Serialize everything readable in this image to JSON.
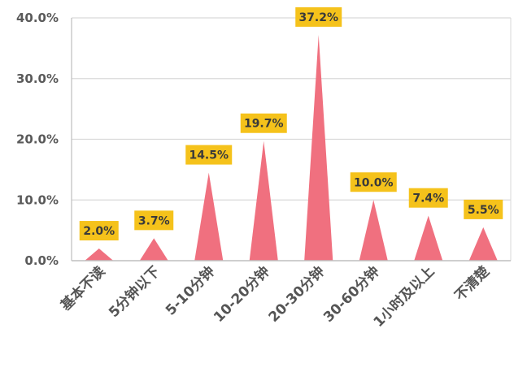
{
  "chart_data": {
    "type": "bar",
    "bar_shape": "triangle",
    "categories": [
      "基本不读",
      "5分钟以下",
      "5-10分钟",
      "10-20分钟",
      "20-30分钟",
      "30-60分钟",
      "1小时及以上",
      "不清楚"
    ],
    "values": [
      2.0,
      3.7,
      14.5,
      19.7,
      37.2,
      10.0,
      7.4,
      5.5
    ],
    "data_labels": [
      "2.0%",
      "3.7%",
      "14.5%",
      "19.7%",
      "37.2%",
      "10.0%",
      "7.4%",
      "5.5%"
    ],
    "ylim": [
      0,
      40
    ],
    "yticks": [
      "0.0%",
      "10.0%",
      "20.0%",
      "30.0%",
      "40.0%"
    ],
    "grid": true,
    "title": "",
    "xlabel": "",
    "ylabel": "",
    "colors": {
      "bar": "#f0707f",
      "label_box": "#f5c21b",
      "grid": "#d9d9d9",
      "axis": "#bfbfbf"
    }
  }
}
